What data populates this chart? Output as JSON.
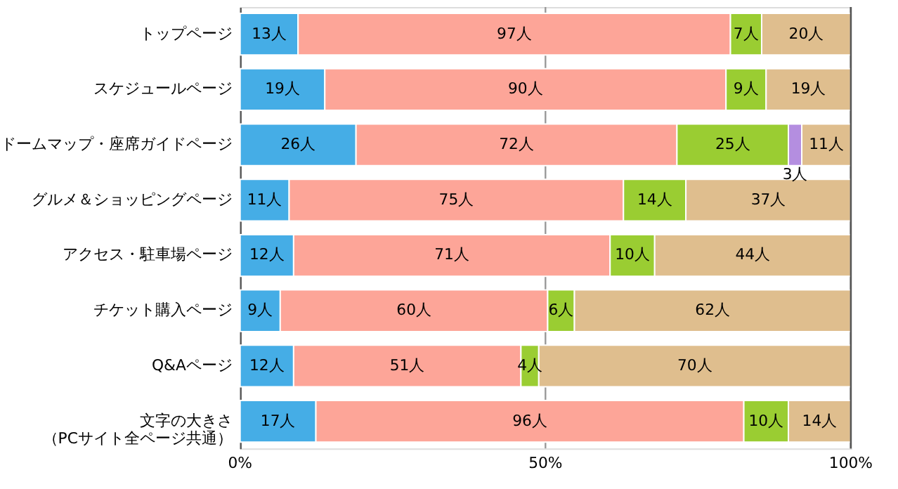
{
  "chart_data": {
    "type": "bar",
    "orientation": "horizontal",
    "stacked": true,
    "categories": [
      "トップページ",
      "スケジュールページ",
      "ドームマップ・座席ガイドページ",
      "グルメ＆ショッピングページ",
      "アクセス・駐車場ページ",
      "チケット購入ページ",
      "Q&Aページ",
      "文字の大きさ（PCサイト全ページ共通）"
    ],
    "series": [
      {
        "color": "#45ade6",
        "values": [
          13,
          19,
          26,
          11,
          12,
          9,
          12,
          17
        ],
        "value_labels": [
          "13人",
          "19人",
          "26人",
          "11人",
          "12人",
          "9人",
          "12人",
          "17人"
        ]
      },
      {
        "color": "#fda598",
        "values": [
          97,
          90,
          72,
          75,
          71,
          60,
          51,
          96
        ],
        "value_labels": [
          "97人",
          "90人",
          "72人",
          "75人",
          "71人",
          "60人",
          "51人",
          "96人"
        ]
      },
      {
        "color": "#9acd32",
        "values": [
          7,
          9,
          25,
          14,
          10,
          6,
          4,
          10
        ],
        "value_labels": [
          "7人",
          "9人",
          "25人",
          "14人",
          "10人",
          "6人",
          "4人",
          "10人"
        ]
      },
      {
        "color": "#b48ee0",
        "values": [
          null,
          null,
          3,
          null,
          null,
          null,
          null,
          null
        ],
        "value_labels": [
          null,
          null,
          "3人",
          null,
          null,
          null,
          null,
          null
        ]
      },
      {
        "color": "#dfbe8e",
        "values": [
          20,
          19,
          11,
          37,
          44,
          62,
          70,
          14
        ],
        "value_labels": [
          "20人",
          "19人",
          "11人",
          "37人",
          "44人",
          "62人",
          "70人",
          "14人"
        ]
      }
    ],
    "xlim": [
      0,
      137
    ],
    "xticks": [
      {
        "value": 0,
        "label": null
      },
      {
        "value": 68.5,
        "label": null
      },
      {
        "value": 137,
        "label": null
      }
    ],
    "annotations": [
      "0%",
      "50%",
      "100%"
    ],
    "ref_lines": [
      {
        "axis": "x",
        "value": 68.5,
        "color": "#999999"
      },
      {
        "axis": "x",
        "value": 137,
        "color": "#555555"
      }
    ]
  }
}
